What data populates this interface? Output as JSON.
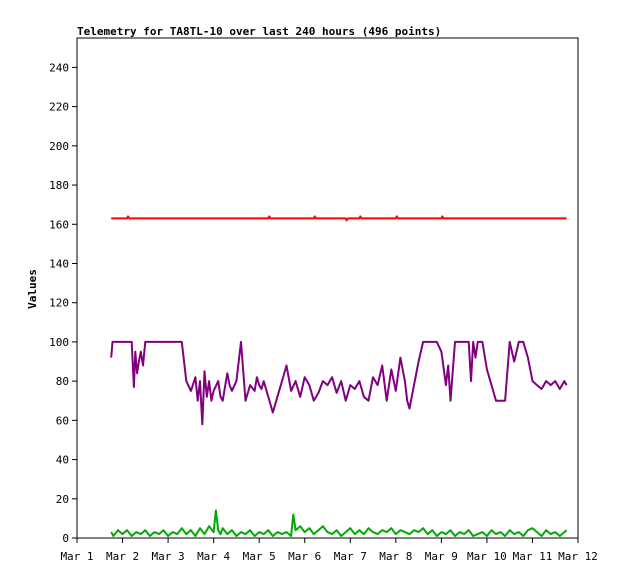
{
  "chart_data": {
    "type": "line",
    "title": "Telemetry for TA8TL-10 over last 240 hours (496 points)",
    "xlabel": "",
    "ylabel": "Values",
    "xlim": [
      0,
      11
    ],
    "ylim": [
      0,
      255
    ],
    "y_ticks": [
      0,
      20,
      40,
      60,
      80,
      100,
      120,
      140,
      160,
      180,
      200,
      220,
      240
    ],
    "x_ticks": [
      {
        "x": 0,
        "label": "Mar 1"
      },
      {
        "x": 1,
        "label": "Mar 2"
      },
      {
        "x": 2,
        "label": "Mar 3"
      },
      {
        "x": 3,
        "label": "Mar 4"
      },
      {
        "x": 4,
        "label": "Mar 5"
      },
      {
        "x": 5,
        "label": "Mar 6"
      },
      {
        "x": 6,
        "label": "Mar 7"
      },
      {
        "x": 7,
        "label": "Mar 8"
      },
      {
        "x": 8,
        "label": "Mar 9"
      },
      {
        "x": 9,
        "label": "Mar 10"
      },
      {
        "x": 10,
        "label": "Mar 11"
      },
      {
        "x": 11,
        "label": "Mar 12"
      }
    ],
    "grid": false,
    "legend": "none",
    "series": [
      {
        "color": "#ff0000",
        "x": [
          0.75,
          1.1,
          1.12,
          1.15,
          2.0,
          3.0,
          4.0,
          4.2,
          4.22,
          4.25,
          5.2,
          5.22,
          5.25,
          5.9,
          5.92,
          5.95,
          6.2,
          6.22,
          6.25,
          7.0,
          7.02,
          7.05,
          8.0,
          8.02,
          8.05,
          9.0,
          10.0,
          10.75
        ],
        "y": [
          163,
          163,
          164,
          163,
          163,
          163,
          163,
          163,
          164,
          163,
          163,
          164,
          163,
          163,
          162,
          163,
          163,
          164,
          163,
          163,
          164,
          163,
          163,
          164,
          163,
          163,
          163,
          163
        ]
      },
      {
        "color": "#800080",
        "x": [
          0.75,
          0.78,
          0.82,
          1.2,
          1.25,
          1.28,
          1.32,
          1.36,
          1.4,
          1.45,
          1.5,
          1.55,
          1.6,
          2.3,
          2.4,
          2.5,
          2.6,
          2.65,
          2.7,
          2.75,
          2.8,
          2.85,
          2.9,
          2.95,
          3.0,
          3.1,
          3.15,
          3.2,
          3.3,
          3.35,
          3.4,
          3.5,
          3.6,
          3.7,
          3.8,
          3.9,
          3.95,
          4.0,
          4.05,
          4.1,
          4.2,
          4.3,
          4.4,
          4.5,
          4.6,
          4.7,
          4.8,
          4.9,
          5.0,
          5.1,
          5.2,
          5.3,
          5.4,
          5.5,
          5.6,
          5.7,
          5.8,
          5.9,
          6.0,
          6.1,
          6.2,
          6.3,
          6.4,
          6.5,
          6.6,
          6.7,
          6.8,
          6.9,
          7.0,
          7.1,
          7.2,
          7.25,
          7.3,
          7.4,
          7.5,
          7.6,
          7.7,
          7.8,
          7.9,
          8.0,
          8.1,
          8.15,
          8.2,
          8.3,
          8.4,
          8.5,
          8.6,
          8.65,
          8.7,
          8.75,
          8.8,
          8.9,
          9.0,
          9.1,
          9.2,
          9.4,
          9.5,
          9.6,
          9.7,
          9.75,
          9.8,
          9.9,
          10.0,
          10.1,
          10.2,
          10.3,
          10.4,
          10.5,
          10.6,
          10.7,
          10.75
        ],
        "y": [
          92,
          100,
          100,
          100,
          77,
          95,
          84,
          90,
          95,
          88,
          100,
          100,
          100,
          100,
          80,
          75,
          82,
          70,
          80,
          58,
          85,
          72,
          80,
          70,
          75,
          80,
          72,
          70,
          84,
          78,
          75,
          80,
          100,
          70,
          78,
          75,
          82,
          78,
          76,
          80,
          72,
          64,
          72,
          80,
          88,
          75,
          80,
          72,
          82,
          78,
          70,
          74,
          80,
          78,
          82,
          74,
          80,
          70,
          78,
          76,
          80,
          72,
          70,
          82,
          78,
          88,
          70,
          86,
          75,
          92,
          80,
          70,
          66,
          78,
          90,
          100,
          100,
          100,
          100,
          95,
          78,
          88,
          70,
          100,
          100,
          100,
          100,
          80,
          100,
          92,
          100,
          100,
          86,
          78,
          70,
          70,
          100,
          90,
          100,
          100,
          100,
          92,
          80,
          78,
          76,
          80,
          78,
          80,
          76,
          80,
          78
        ]
      },
      {
        "color": "#00aa00",
        "x": [
          0.75,
          0.8,
          0.9,
          1.0,
          1.1,
          1.2,
          1.3,
          1.4,
          1.5,
          1.6,
          1.7,
          1.8,
          1.9,
          2.0,
          2.1,
          2.2,
          2.3,
          2.4,
          2.5,
          2.6,
          2.7,
          2.8,
          2.9,
          3.0,
          3.05,
          3.1,
          3.15,
          3.2,
          3.3,
          3.4,
          3.5,
          3.6,
          3.7,
          3.8,
          3.9,
          4.0,
          4.1,
          4.2,
          4.3,
          4.4,
          4.5,
          4.6,
          4.7,
          4.75,
          4.8,
          4.9,
          5.0,
          5.1,
          5.2,
          5.3,
          5.4,
          5.5,
          5.6,
          5.7,
          5.8,
          5.9,
          6.0,
          6.1,
          6.2,
          6.3,
          6.4,
          6.5,
          6.6,
          6.7,
          6.8,
          6.9,
          7.0,
          7.1,
          7.2,
          7.3,
          7.4,
          7.5,
          7.6,
          7.7,
          7.8,
          7.9,
          8.0,
          8.1,
          8.2,
          8.3,
          8.4,
          8.5,
          8.6,
          8.7,
          8.8,
          8.9,
          9.0,
          9.1,
          9.2,
          9.3,
          9.4,
          9.5,
          9.6,
          9.7,
          9.8,
          9.9,
          10.0,
          10.1,
          10.2,
          10.3,
          10.4,
          10.5,
          10.6,
          10.7,
          10.75
        ],
        "y": [
          3,
          1,
          4,
          2,
          4,
          1,
          3,
          2,
          4,
          1,
          3,
          2,
          4,
          1,
          3,
          2,
          5,
          2,
          4,
          1,
          5,
          2,
          6,
          3,
          14,
          4,
          2,
          5,
          2,
          4,
          1,
          3,
          2,
          4,
          1,
          3,
          2,
          4,
          1,
          3,
          2,
          3,
          1,
          12,
          4,
          6,
          3,
          5,
          2,
          4,
          6,
          3,
          2,
          4,
          1,
          3,
          5,
          2,
          4,
          2,
          5,
          3,
          2,
          4,
          3,
          5,
          2,
          4,
          3,
          2,
          4,
          3,
          5,
          2,
          4,
          1,
          3,
          2,
          4,
          1,
          3,
          2,
          4,
          1,
          2,
          3,
          1,
          4,
          2,
          3,
          1,
          4,
          2,
          3,
          1,
          4,
          5,
          3,
          1,
          4,
          2,
          3,
          1,
          3,
          4
        ]
      }
    ]
  }
}
